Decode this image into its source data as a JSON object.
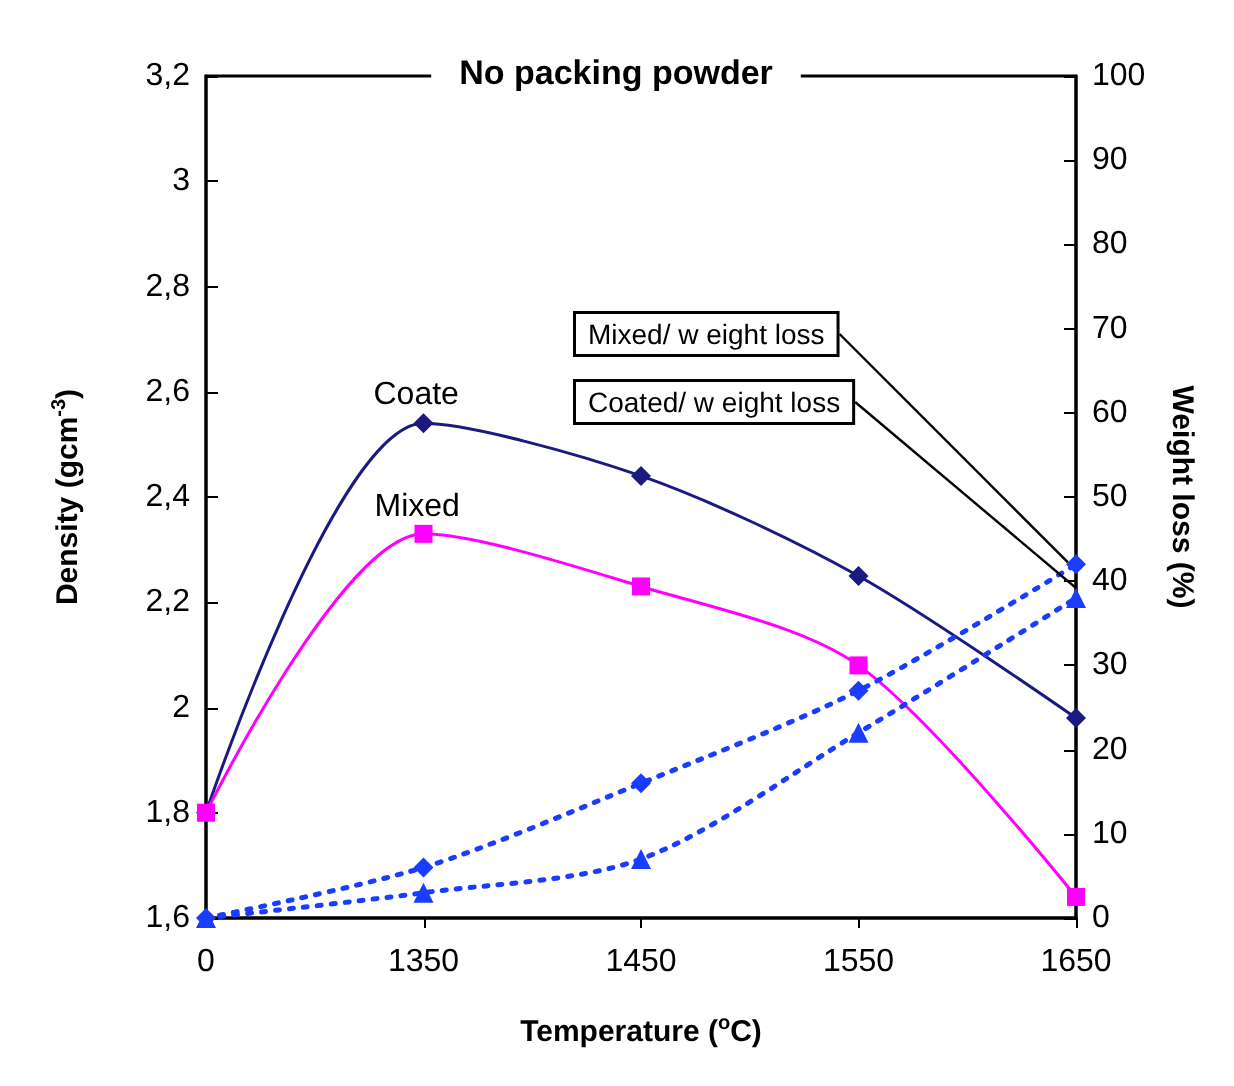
{
  "chart_data": {
    "type": "line",
    "title": "No packing powder",
    "xlabel": "Temperature ($^{o}$C)",
    "ylabel": "Density (gcm$^{-3}$)",
    "y2label": "Weight loss (%)",
    "categories": [
      "0",
      "1350",
      "1450",
      "1550",
      "1650"
    ],
    "series": [
      {
        "name": "Coate",
        "color": "#1a1a80",
        "marker": "diamond",
        "line_style": "solid",
        "values": [
          1.8,
          2.54,
          2.44,
          2.25,
          1.98
        ]
      },
      {
        "name": "Mixed",
        "color": "#ff00ff",
        "marker": "square",
        "line_style": "solid",
        "values": [
          1.8,
          2.33,
          2.23,
          2.08,
          1.64
        ]
      },
      {
        "name": "Mixed/ w eight loss",
        "color": "#1a3cff",
        "marker": "diamond",
        "line_style": "dotted",
        "axis": "y2",
        "values": [
          0,
          6,
          16,
          27,
          42
        ]
      },
      {
        "name": "Coated/ w eight loss",
        "color": "#1a3cff",
        "marker": "triangle",
        "line_style": "dotted",
        "axis": "y2",
        "values": [
          0,
          3,
          7,
          22,
          38
        ]
      }
    ],
    "ylim": [
      1.6,
      3.2
    ],
    "yticks": [
      {
        "value": 1.6,
        "label": "1,6"
      },
      {
        "value": 1.8,
        "label": "1,8"
      },
      {
        "value": 2,
        "label": "2"
      },
      {
        "value": 2.2,
        "label": "2,2"
      },
      {
        "value": 2.4,
        "label": "2,4"
      },
      {
        "value": 2.6,
        "label": "2,6"
      },
      {
        "value": 2.8,
        "label": "2,8"
      },
      {
        "value": 3,
        "label": "3"
      },
      {
        "value": 3.2,
        "label": "3,2"
      }
    ],
    "y2lim": [
      0,
      100
    ],
    "y2ticks": [
      0,
      10,
      20,
      30,
      40,
      50,
      60,
      70,
      80,
      90,
      100
    ],
    "grid": false,
    "legend": false
  }
}
